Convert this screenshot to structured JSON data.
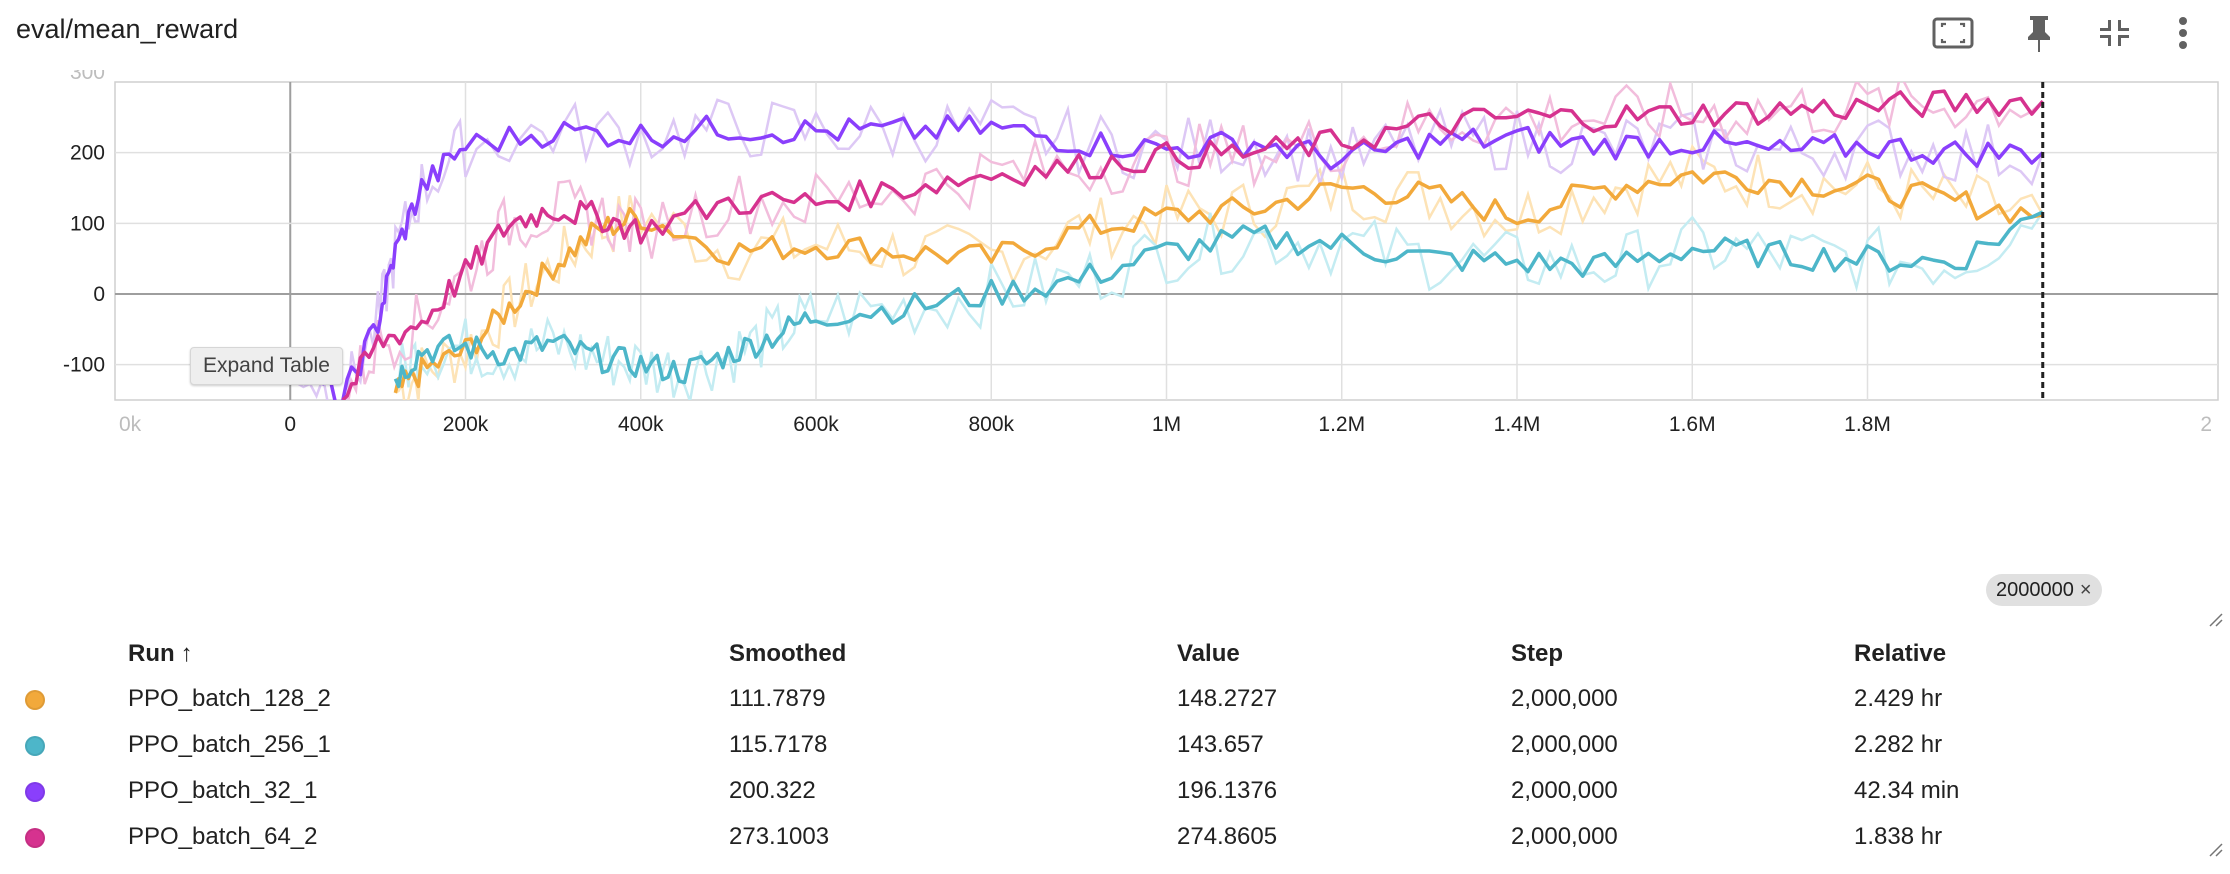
{
  "header": {
    "title": "eval/mean_reward"
  },
  "toolbar": {
    "icons": [
      "fit-domain-icon",
      "pin-icon",
      "collapse-icon",
      "more-vert-icon"
    ]
  },
  "expand_table_label": "Expand Table",
  "step_chip": {
    "label": "2000000",
    "close": "×"
  },
  "table": {
    "headers": {
      "run": "Run",
      "sort_indicator": "↑",
      "smoothed": "Smoothed",
      "value": "Value",
      "step": "Step",
      "relative": "Relative"
    },
    "rows": [
      {
        "run": "PPO_batch_128_2",
        "color": "#f2a93b",
        "smoothed": "111.7879",
        "value": "148.2727",
        "step": "2,000,000",
        "relative": "2.429 hr"
      },
      {
        "run": "PPO_batch_256_1",
        "color": "#4db6c9",
        "smoothed": "115.7178",
        "value": "143.657",
        "step": "2,000,000",
        "relative": "2.282 hr"
      },
      {
        "run": "PPO_batch_32_1",
        "color": "#8a3ffc",
        "smoothed": "200.322",
        "value": "196.1376",
        "step": "2,000,000",
        "relative": "42.34 min"
      },
      {
        "run": "PPO_batch_64_2",
        "color": "#d6328f",
        "smoothed": "273.1003",
        "value": "274.8605",
        "step": "2,000,000",
        "relative": "1.838 hr"
      }
    ]
  },
  "chart_data": {
    "type": "line",
    "title": "eval/mean_reward",
    "xlabel": "",
    "ylabel": "",
    "xlim": [
      -200000,
      2200000
    ],
    "ylim": [
      -150,
      300
    ],
    "x_ticks": [
      0,
      200000,
      400000,
      600000,
      800000,
      1000000,
      1200000,
      1400000,
      1600000,
      1800000
    ],
    "x_tick_labels": [
      "0",
      "200k",
      "400k",
      "600k",
      "800k",
      "1M",
      "1.2M",
      "1.4M",
      "1.6M",
      "1.8M"
    ],
    "x_edge_labels": [
      "0k",
      "2"
    ],
    "y_ticks": [
      -100,
      0,
      100,
      200
    ],
    "y_tick_labels": [
      "-100",
      "0",
      "100",
      "200"
    ],
    "y_edge_label": "300",
    "cursor_step": 2000000,
    "grid": true,
    "series": [
      {
        "name": "PPO_batch_32_1",
        "color": "#8a3ffc",
        "raw_color": "#ddc8f5",
        "x": [
          0,
          60000,
          100000,
          120000,
          150000,
          200000,
          300000,
          400000,
          500000,
          600000,
          700000,
          800000,
          900000,
          1000000,
          1100000,
          1200000,
          1300000,
          1400000,
          1500000,
          1600000,
          1700000,
          1800000,
          1900000,
          2000000
        ],
        "y": [
          -95,
          -150,
          -40,
          60,
          150,
          210,
          230,
          225,
          235,
          230,
          230,
          235,
          215,
          205,
          215,
          190,
          215,
          220,
          210,
          215,
          200,
          210,
          200,
          200
        ]
      },
      {
        "name": "PPO_batch_64_2",
        "color": "#d6328f",
        "raw_color": "#f2bddc",
        "x": [
          60000,
          100000,
          150000,
          200000,
          250000,
          300000,
          350000,
          400000,
          500000,
          600000,
          700000,
          800000,
          900000,
          1000000,
          1100000,
          1200000,
          1300000,
          1400000,
          1500000,
          1600000,
          1700000,
          1800000,
          1900000,
          2000000
        ],
        "y": [
          -150,
          -70,
          -40,
          30,
          100,
          120,
          110,
          90,
          130,
          130,
          150,
          170,
          180,
          195,
          200,
          215,
          240,
          250,
          250,
          255,
          260,
          265,
          270,
          273
        ]
      },
      {
        "name": "PPO_batch_128_2",
        "color": "#f2a93b",
        "raw_color": "#fde3b6",
        "x": [
          120000,
          150000,
          200000,
          250000,
          300000,
          350000,
          400000,
          500000,
          600000,
          700000,
          800000,
          900000,
          1000000,
          1100000,
          1200000,
          1300000,
          1400000,
          1500000,
          1600000,
          1700000,
          1800000,
          1900000,
          2000000
        ],
        "y": [
          -140,
          -110,
          -80,
          -20,
          40,
          90,
          110,
          60,
          70,
          60,
          50,
          90,
          110,
          120,
          150,
          140,
          110,
          150,
          170,
          160,
          150,
          130,
          112
        ]
      },
      {
        "name": "PPO_batch_256_1",
        "color": "#4db6c9",
        "raw_color": "#c4ecf2",
        "x": [
          120000,
          150000,
          200000,
          250000,
          300000,
          350000,
          400000,
          450000,
          500000,
          550000,
          600000,
          700000,
          800000,
          900000,
          1000000,
          1100000,
          1200000,
          1300000,
          1400000,
          1500000,
          1600000,
          1700000,
          1800000,
          1900000,
          2000000
        ],
        "y": [
          -120,
          -80,
          -75,
          -85,
          -70,
          -90,
          -100,
          -110,
          -85,
          -60,
          -30,
          -20,
          0,
          20,
          60,
          80,
          70,
          50,
          45,
          40,
          65,
          55,
          50,
          45,
          116
        ]
      }
    ]
  }
}
